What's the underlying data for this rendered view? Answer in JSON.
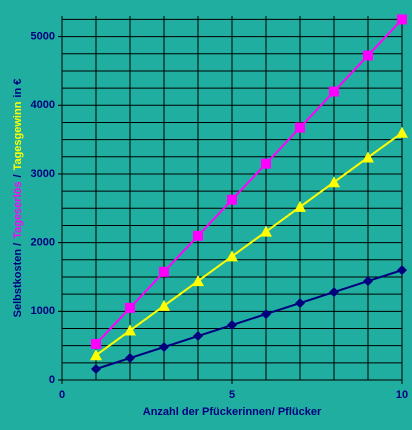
{
  "chart_data": {
    "type": "line",
    "x_label": "Anzahl der Pfückerinnen/ Pflücker",
    "y_label_parts": [
      {
        "text": "Selbstkosten /",
        "color": "#00007f"
      },
      {
        "text": "Tageserlös",
        "color": "#ff00ff"
      },
      {
        "text": "/",
        "color": "#00007f"
      },
      {
        "text": "Tagesgewinn",
        "color": "#ffff00"
      },
      {
        "text": "in €",
        "color": "#00007f"
      }
    ],
    "x": [
      1,
      2,
      3,
      4,
      5,
      6,
      7,
      8,
      9,
      10
    ],
    "series": [
      {
        "name": "Selbstkosten",
        "color": "#00007f",
        "marker": "diamond",
        "values": [
          160,
          320,
          480,
          640,
          800,
          960,
          1120,
          1280,
          1440,
          1600
        ]
      },
      {
        "name": "Tagesgewinn",
        "color": "#ffff00",
        "marker": "triangle",
        "values": [
          360,
          720,
          1080,
          1440,
          1800,
          2160,
          2520,
          2880,
          3240,
          3600
        ]
      },
      {
        "name": "Tageserlös",
        "color": "#ff00ff",
        "marker": "square",
        "values": [
          525,
          1050,
          1575,
          2100,
          2625,
          3150,
          3675,
          4200,
          4725,
          5250
        ]
      }
    ],
    "xlim": [
      0,
      10
    ],
    "xticks": [
      0,
      5,
      10
    ],
    "xgrid": [
      1,
      2,
      3,
      4,
      5,
      6,
      7,
      8,
      9,
      10
    ],
    "ylim": [
      0,
      5300
    ],
    "yticks": [
      0,
      1000,
      2000,
      3000,
      4000,
      5000
    ],
    "ygrid": [
      250,
      500,
      750,
      1000,
      1250,
      1500,
      1750,
      2000,
      2250,
      2500,
      2750,
      3000,
      3250,
      3500,
      3750,
      4000,
      4250,
      4500,
      4750,
      5000,
      5250
    ],
    "background": "#1fae9f"
  }
}
